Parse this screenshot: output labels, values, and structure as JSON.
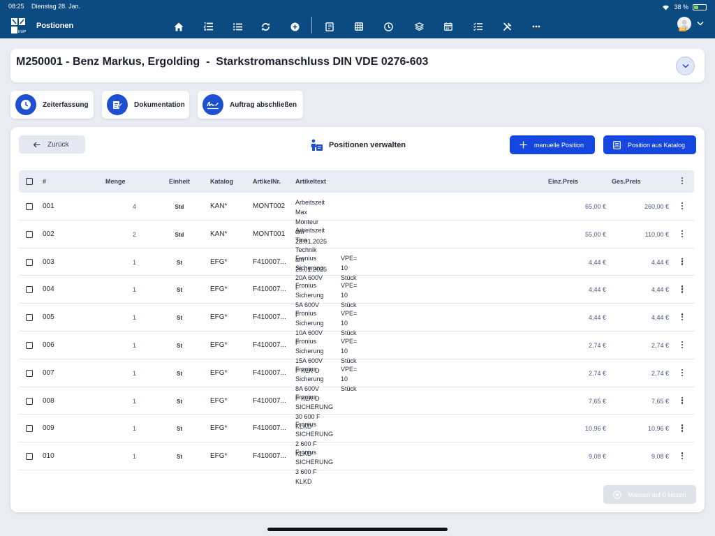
{
  "status": {
    "time": "08:25",
    "date": "Dienstag 28. Jan.",
    "battery": "38 %",
    "battery_level": 0.38
  },
  "appbar": {
    "title": "Postionen",
    "nav_icons": [
      "home-icon",
      "list-numbered-icon",
      "list-icon",
      "sync-icon",
      "plus-circle-icon",
      "notebook-icon",
      "grid-icon",
      "clock-icon",
      "layers-icon",
      "calendar-icon",
      "checklist-icon",
      "tools-icon",
      "more-icon"
    ],
    "avatar_badge": "02"
  },
  "header": {
    "title": "M250001 - Benz Markus, Ergolding  -  Starkstromanschluss DIN VDE 0276-603"
  },
  "actions": [
    {
      "label": "Zeiterfassung",
      "icon": "clock-icon"
    },
    {
      "label": "Dokumentation",
      "icon": "edit-document-icon"
    },
    {
      "label": "Auftrag abschließen",
      "icon": "signature-icon"
    }
  ],
  "panel": {
    "back_label": "Zurück",
    "title": "Positionen verwalten",
    "btn_manual": "manuelle Position",
    "btn_catalog": "Position aus Katalog",
    "btn_zero": "Massen auf 0 setzen"
  },
  "table": {
    "headers": {
      "nr": "#",
      "menge": "Menge",
      "einheit": "Einheit",
      "katalog": "Katalog",
      "artikelnr": "ArtikelNr.",
      "artikeltext": "Artikeltext",
      "einzelpreis": "Einz.Preis",
      "gesamtpreis": "Ges.Preis"
    },
    "rows": [
      {
        "nr": "001",
        "menge": "4",
        "einheit": "Std",
        "katalog": "KAN*",
        "artikelnr": "MONT002",
        "text1": "Arbeitszeit Max Monteur am 28.01.2025",
        "text2": "",
        "ep": "65,00 €",
        "gp": "260,00 €"
      },
      {
        "nr": "002",
        "menge": "2",
        "einheit": "Std",
        "katalog": "KAN*",
        "artikelnr": "MONT001",
        "text1": "Arbeitszeit Tina Technik am 28.01.2025",
        "text2": "",
        "ep": "55,00 €",
        "gp": "110,00 €"
      },
      {
        "nr": "003",
        "menge": "1",
        "einheit": "St",
        "katalog": "EFG*",
        "artikelnr": "F410007...",
        "text1": "Fronius Sicherung 20A 600V F",
        "text2": "VPE= 10 Stück",
        "ep": "4,44 €",
        "gp": "4,44 €"
      },
      {
        "nr": "004",
        "menge": "1",
        "einheit": "St",
        "katalog": "EFG*",
        "artikelnr": "F410007...",
        "text1": "Fronius Sicherung 5A 600V F",
        "text2": "VPE= 10 Stück",
        "ep": "4,44 €",
        "gp": "4,44 €"
      },
      {
        "nr": "005",
        "menge": "1",
        "einheit": "St",
        "katalog": "EFG*",
        "artikelnr": "F410007...",
        "text1": "Fronius Sicherung 10A 600V F",
        "text2": "VPE= 10 Stück",
        "ep": "4,44 €",
        "gp": "4,44 €"
      },
      {
        "nr": "006",
        "menge": "1",
        "einheit": "St",
        "katalog": "EFG*",
        "artikelnr": "F410007...",
        "text1": "Fronius Sicherung 15A 600V F KLK-D",
        "text2": "VPE= 10 Stück",
        "ep": "2,74 €",
        "gp": "2,74 €"
      },
      {
        "nr": "007",
        "menge": "1",
        "einheit": "St",
        "katalog": "EFG*",
        "artikelnr": "F410007...",
        "text1": "Fronius Sicherung 8A 600V F KLK-D",
        "text2": "VPE= 10 Stück",
        "ep": "2,74 €",
        "gp": "2,74 €"
      },
      {
        "nr": "008",
        "menge": "1",
        "einheit": "St",
        "katalog": "EFG*",
        "artikelnr": "F410007...",
        "text1": "Fronius SICHERUNG 30 600 F KLKD",
        "text2": "",
        "ep": "7,65 €",
        "gp": "7,65 €"
      },
      {
        "nr": "009",
        "menge": "1",
        "einheit": "St",
        "katalog": "EFG*",
        "artikelnr": "F410007...",
        "text1": "Fronius SICHERUNG  2 600 F KLKD",
        "text2": "",
        "ep": "10,96 €",
        "gp": "10,96 €"
      },
      {
        "nr": "010",
        "menge": "1",
        "einheit": "St",
        "katalog": "EFG*",
        "artikelnr": "F410007...",
        "text1": "Fronius SICHERUNG  3 600 F KLKD",
        "text2": "",
        "ep": "9,08 €",
        "gp": "9,08 €"
      }
    ]
  },
  "colors": {
    "topbar": "#0c4a82",
    "primary": "#1547e0",
    "icon_circle": "#1f4fd1",
    "badge": "#f29a1d"
  }
}
